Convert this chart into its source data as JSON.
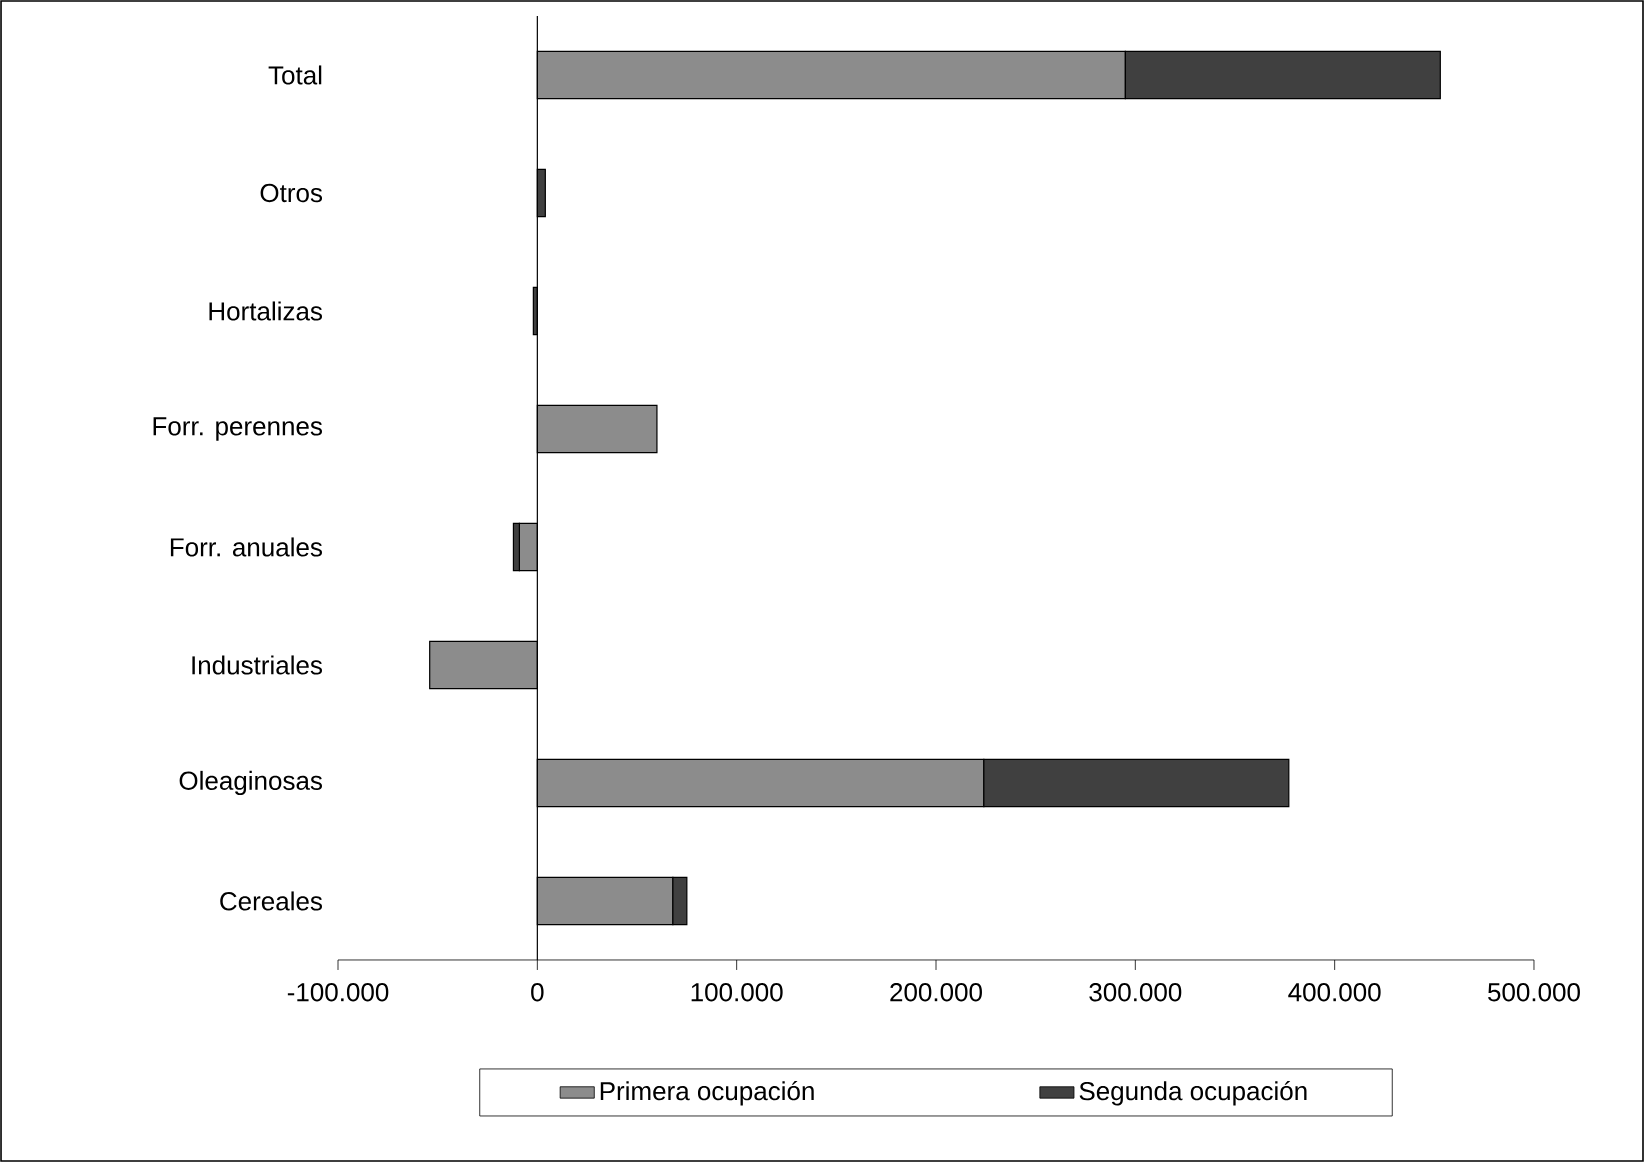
{
  "chart_data": {
    "type": "bar",
    "orientation": "horizontal",
    "stacked": true,
    "categories": [
      "Total",
      "Otros",
      "Hortalizas",
      "Forr. perennes",
      "Forr. anuales",
      "Industriales",
      "Oleaginosas",
      "Cereales"
    ],
    "series": [
      {
        "name": "Primera ocupación",
        "color": "#8c8c8c",
        "values": [
          295000,
          null,
          null,
          60000,
          -9000,
          -54000,
          224000,
          68000
        ]
      },
      {
        "name": "Segunda ocupación",
        "color": "#404040",
        "values": [
          158000,
          4000,
          -2000,
          null,
          -3000,
          null,
          153000,
          7000
        ]
      }
    ],
    "xlim": [
      -100000,
      500000
    ],
    "xticks": [
      {
        "value": -100000,
        "label": "-100.000"
      },
      0,
      {
        "value": 100000,
        "label": "100.000"
      },
      {
        "value": 200000,
        "label": "200.000"
      },
      {
        "value": 300000,
        "label": "300.000"
      },
      {
        "value": 400000,
        "label": "400.000"
      },
      {
        "value": 500000,
        "label": "500.000"
      }
    ],
    "legend": "bottom"
  }
}
